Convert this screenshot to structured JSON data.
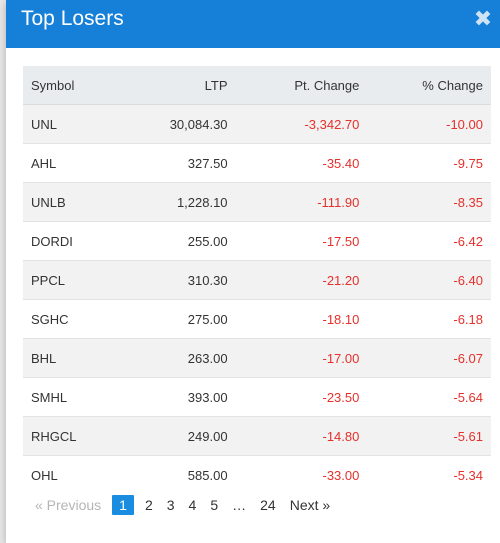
{
  "modal": {
    "title": "Top Losers",
    "close_glyph": "✖"
  },
  "table": {
    "headers": {
      "symbol": "Symbol",
      "ltp": "LTP",
      "pt_change": "Pt. Change",
      "pct_change": "% Change"
    },
    "rows": [
      {
        "symbol": "UNL",
        "ltp": "30,084.30",
        "pt_change": "-3,342.70",
        "pct_change": "-10.00"
      },
      {
        "symbol": "AHL",
        "ltp": "327.50",
        "pt_change": "-35.40",
        "pct_change": "-9.75"
      },
      {
        "symbol": "UNLB",
        "ltp": "1,228.10",
        "pt_change": "-111.90",
        "pct_change": "-8.35"
      },
      {
        "symbol": "DORDI",
        "ltp": "255.00",
        "pt_change": "-17.50",
        "pct_change": "-6.42"
      },
      {
        "symbol": "PPCL",
        "ltp": "310.30",
        "pt_change": "-21.20",
        "pct_change": "-6.40"
      },
      {
        "symbol": "SGHC",
        "ltp": "275.00",
        "pt_change": "-18.10",
        "pct_change": "-6.18"
      },
      {
        "symbol": "BHL",
        "ltp": "263.00",
        "pt_change": "-17.00",
        "pct_change": "-6.07"
      },
      {
        "symbol": "SMHL",
        "ltp": "393.00",
        "pt_change": "-23.50",
        "pct_change": "-5.64"
      },
      {
        "symbol": "RHGCL",
        "ltp": "249.00",
        "pt_change": "-14.80",
        "pct_change": "-5.61"
      },
      {
        "symbol": "OHL",
        "ltp": "585.00",
        "pt_change": "-33.00",
        "pct_change": "-5.34"
      }
    ]
  },
  "pagination": {
    "previous": "« Previous",
    "pages": [
      "1",
      "2",
      "3",
      "4",
      "5"
    ],
    "ellipsis": "…",
    "last_page": "24",
    "next": "Next »",
    "active_page": "1"
  },
  "colors": {
    "header_bg": "#1680d8",
    "negative": "#e5302b",
    "active_page": "#1a8de0"
  }
}
